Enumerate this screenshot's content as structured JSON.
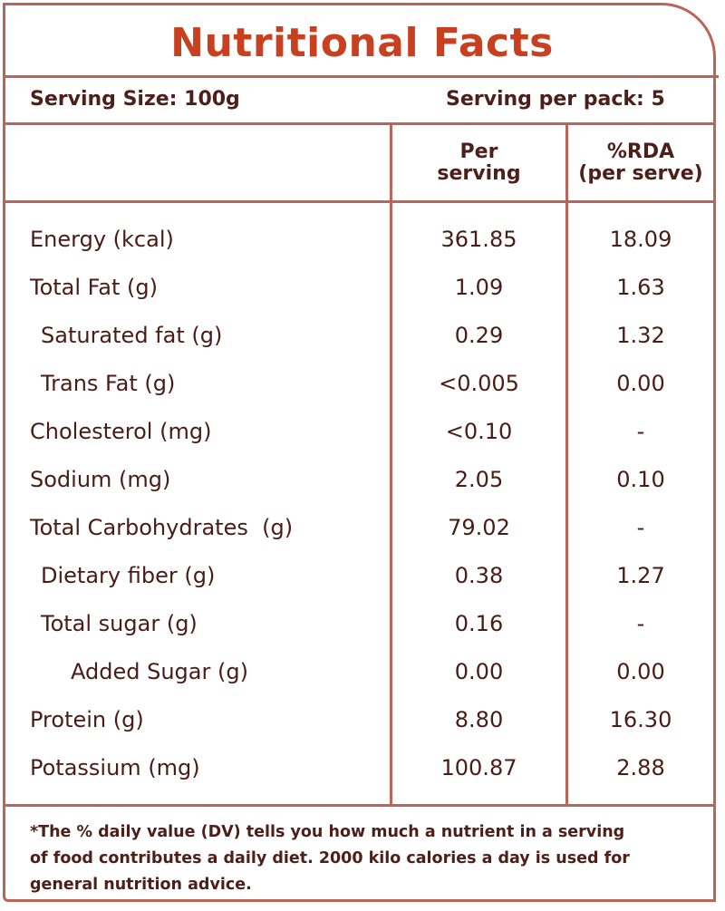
{
  "title": "Nutritional Facts",
  "serving": {
    "size": "Serving Size: 100g",
    "per_pack": "Serving per pack: 5"
  },
  "columns": {
    "per_serving_line1": "Per",
    "per_serving_line2": "serving",
    "rda_line1": "%RDA",
    "rda_line2": "(per serve)"
  },
  "nutrients": [
    {
      "name": "Energy (kcal)",
      "per_serving": "361.85",
      "rda": "18.09"
    },
    {
      "name": "Total Fat (g)",
      "per_serving": "1.09",
      "rda": "1.63"
    },
    {
      "name": "Saturated fat (g)",
      "per_serving": "0.29",
      "rda": "1.32"
    },
    {
      "name": "Trans Fat (g)",
      "per_serving": "<0.005",
      "rda": "0.00"
    },
    {
      "name": "Cholesterol (mg)",
      "per_serving": "<0.10",
      "rda": "-"
    },
    {
      "name": "Sodium (mg)",
      "per_serving": "2.05",
      "rda": "0.10"
    },
    {
      "name": "Total Carbohydrates  (g)",
      "per_serving": "79.02",
      "rda": "-"
    },
    {
      "name": "Dietary fiber (g)",
      "per_serving": "0.38",
      "rda": "1.27"
    },
    {
      "name": "Total sugar (g)",
      "per_serving": "0.16",
      "rda": "-"
    },
    {
      "name": "Added Sugar (g)",
      "per_serving": "0.00",
      "rda": "0.00"
    },
    {
      "name": "Protein (g)",
      "per_serving": "8.80",
      "rda": "16.30"
    },
    {
      "name": "Potassium (mg)",
      "per_serving": "100.87",
      "rda": "2.88"
    }
  ],
  "footnote": {
    "line1": "*The % daily value (DV) tells you how much a nutrient in a serving",
    "line2": "of food contributes a daily diet. 2000 kilo calories a day is used for",
    "line3": "general nutrition advice."
  },
  "colors": {
    "title": "#c8401f",
    "border": "#b8655a",
    "text": "#4a1c16"
  }
}
